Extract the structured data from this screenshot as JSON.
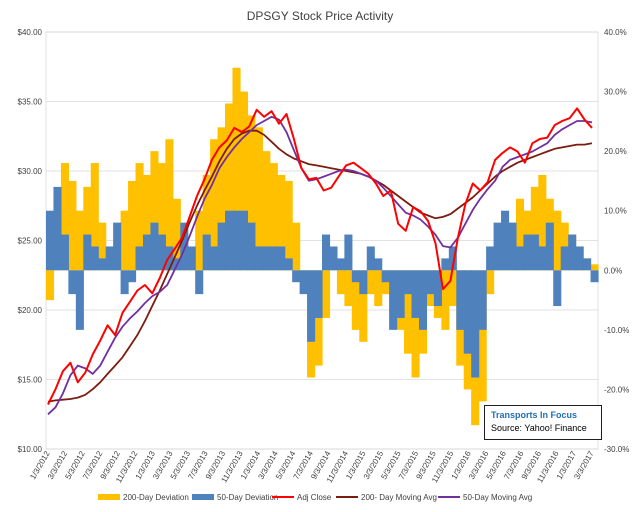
{
  "chart_data": {
    "type": "line",
    "title": "DPSGY Stock Price Activity",
    "left_axis": {
      "min": 10,
      "max": 40,
      "step": 5,
      "labels": [
        "$10.00",
        "$15.00",
        "$20.00",
        "$25.00",
        "$30.00",
        "$35.00",
        "$40.00"
      ]
    },
    "right_axis": {
      "min": -30,
      "max": 40,
      "step": 10,
      "labels": [
        "-30.0%",
        "-20.0%",
        "-10.0%",
        "0.0%",
        "10.0%",
        "20.0%",
        "30.0%",
        "40.0%"
      ]
    },
    "x_labels": [
      "1/3/2012",
      "3/3/2012",
      "5/3/2012",
      "7/3/2012",
      "9/3/2012",
      "11/3/2012",
      "1/3/2013",
      "3/3/2013",
      "5/3/2013",
      "7/3/2013",
      "9/3/2013",
      "11/3/2013",
      "1/3/2014",
      "3/3/2014",
      "5/3/2014",
      "7/3/2014",
      "9/3/2014",
      "11/3/2014",
      "1/3/2015",
      "3/3/2015",
      "5/3/2015",
      "7/3/2015",
      "9/3/2015",
      "11/3/2015",
      "1/3/2016",
      "3/3/2016",
      "5/3/2016",
      "7/3/2016",
      "9/3/2016",
      "11/3/2016",
      "1/3/2017",
      "3/3/2017"
    ],
    "legend_position": "bottom",
    "series": [
      {
        "name": "200-Day Deviation",
        "type": "area",
        "axis": "right",
        "color": "#ffc000",
        "values": [
          -5,
          12,
          18,
          15,
          10,
          14,
          18,
          8,
          4,
          3,
          10,
          15,
          18,
          16,
          20,
          18,
          22,
          12,
          6,
          2,
          10,
          16,
          22,
          24,
          28,
          34,
          30,
          26,
          24,
          20,
          18,
          16,
          15,
          8,
          0,
          -18,
          -16,
          -8,
          2,
          -4,
          -6,
          -10,
          -12,
          -4,
          -6,
          -4,
          -8,
          -10,
          -14,
          -18,
          -14,
          -6,
          -8,
          -10,
          -6,
          -16,
          -20,
          -26,
          -22,
          -4,
          2,
          4,
          8,
          12,
          10,
          14,
          16,
          12,
          10,
          8,
          6,
          4,
          2,
          1
        ]
      },
      {
        "name": "50-Day Deviation",
        "type": "area",
        "axis": "right",
        "color": "#4f81bd",
        "values": [
          10,
          14,
          6,
          -4,
          -10,
          6,
          4,
          2,
          4,
          8,
          -4,
          -2,
          4,
          6,
          8,
          6,
          4,
          2,
          8,
          4,
          -4,
          6,
          4,
          8,
          10,
          10,
          10,
          8,
          4,
          4,
          4,
          4,
          2,
          -2,
          -4,
          -12,
          -8,
          6,
          4,
          2,
          6,
          -2,
          -4,
          4,
          2,
          -2,
          -10,
          -8,
          -4,
          -8,
          -10,
          -4,
          -6,
          2,
          4,
          -10,
          -14,
          -18,
          -10,
          4,
          8,
          10,
          8,
          4,
          6,
          6,
          4,
          8,
          -6,
          4,
          6,
          4,
          2,
          -2
        ]
      },
      {
        "name": "Adj Close",
        "type": "line",
        "axis": "left",
        "color": "#ff0000",
        "values": [
          13.2,
          14.3,
          15.6,
          16.2,
          14.8,
          15.5,
          16.8,
          17.8,
          18.9,
          18.2,
          19.8,
          20.6,
          21.4,
          21.8,
          21.2,
          22.3,
          23.6,
          24.4,
          25.2,
          26.7,
          28.2,
          29.4,
          30.8,
          31.7,
          32.2,
          33.1,
          32.8,
          33.2,
          34.4,
          33.9,
          34.3,
          33.4,
          34.1,
          32.3,
          30.2,
          29.4,
          29.5,
          28.6,
          28.8,
          29.6,
          30.4,
          30.6,
          30.2,
          29.8,
          29.1,
          28.2,
          28.6,
          26.2,
          25.7,
          27.4,
          27.1,
          26.4,
          24.8,
          21.5,
          22.1,
          25.2,
          27.6,
          29.1,
          28.6,
          29.2,
          30.8,
          31.3,
          31.7,
          31.4,
          30.6,
          32.0,
          32.3,
          32.4,
          33.3,
          33.6,
          33.8,
          34.5,
          33.7,
          33.1
        ]
      },
      {
        "name": "200- Day Moving Avg",
        "type": "line",
        "axis": "left",
        "color": "#7b1c10",
        "values": [
          13.4,
          13.5,
          13.55,
          13.6,
          13.7,
          13.9,
          14.3,
          14.8,
          15.4,
          16.0,
          16.6,
          17.4,
          18.2,
          19.2,
          20.3,
          21.4,
          22.6,
          23.8,
          25.0,
          26.3,
          27.5,
          28.6,
          29.6,
          30.7,
          31.6,
          32.3,
          32.7,
          32.9,
          32.9,
          32.6,
          32.1,
          31.6,
          31.2,
          30.9,
          30.7,
          30.5,
          30.4,
          30.3,
          30.2,
          30.1,
          30.0,
          29.9,
          29.8,
          29.6,
          29.3,
          29.0,
          28.6,
          28.2,
          27.8,
          27.4,
          27.0,
          26.8,
          26.6,
          26.7,
          26.9,
          27.3,
          27.7,
          28.1,
          28.6,
          29.1,
          29.6,
          30.0,
          30.3,
          30.6,
          30.8,
          31.0,
          31.2,
          31.4,
          31.6,
          31.7,
          31.8,
          31.9,
          31.9,
          32.0
        ]
      },
      {
        "name": "50-Day Moving Avg",
        "type": "line",
        "axis": "left",
        "color": "#7030a0",
        "values": [
          12.5,
          13.0,
          14.0,
          15.3,
          16.0,
          15.8,
          15.4,
          16.0,
          17.0,
          18.0,
          18.8,
          19.4,
          19.9,
          20.5,
          21.0,
          21.3,
          21.8,
          22.9,
          24.0,
          25.3,
          26.7,
          28.0,
          29.0,
          30.2,
          31.0,
          31.7,
          32.3,
          32.8,
          33.3,
          33.6,
          33.9,
          33.7,
          32.8,
          31.5,
          30.2,
          29.3,
          29.4,
          29.6,
          29.8,
          30.0,
          30.1,
          30.0,
          29.8,
          29.6,
          29.3,
          28.8,
          28.2,
          27.6,
          27.0,
          26.8,
          26.5,
          26.0,
          25.4,
          24.6,
          24.5,
          25.2,
          26.2,
          27.2,
          28.0,
          28.7,
          29.3,
          30.3,
          30.8,
          31.0,
          31.2,
          31.4,
          31.7,
          32.0,
          32.6,
          33.0,
          33.3,
          33.6,
          33.6,
          33.5
        ]
      }
    ]
  },
  "annotation": {
    "title": "Transports In Focus",
    "source": "Source: Yahoo! Finance"
  }
}
